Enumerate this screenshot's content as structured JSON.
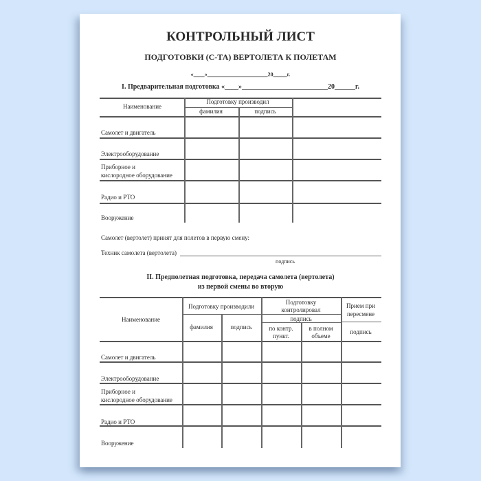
{
  "title": "КОНТРОЛЬНЫЙ ЛИСТ",
  "subtitle": "ПОДГОТОВКИ (С-ТА) ВЕРТОЛЕТА К ПОЛЕТАМ",
  "date_line": "«____»______________________20_____г.",
  "section1": {
    "title": "I. Предварительная подготовка   «____»_________________________20______г.",
    "headers": {
      "name": "Наименование",
      "performed": "Подготовку производил",
      "surname": "фамилия",
      "signature": "подпись"
    },
    "rows": [
      "Самолет и двигатель",
      "Электрооборудование",
      "Приборное и",
      "кислородное оборудование",
      "Радио и РТО",
      "Вооружение"
    ]
  },
  "accepted_text": "Самолет (вертолет) принят для полетов в первую смену:",
  "technician_label": "Техник самолета (вертолета)",
  "signature_caption": "подпись",
  "section2": {
    "title_line1": "II. Предполетная подготовка, передача самолета (вертолета)",
    "title_line2": "из первой смены во вторую",
    "headers": {
      "name": "Наименование",
      "performed": "Подготовку производили",
      "controlled_1": "Подготовку",
      "controlled_2": "контролировал",
      "signature": "подпись",
      "surname": "фамилия",
      "by_points_1": "по контр.",
      "by_points_2": "пункт.",
      "full_1": "в полном",
      "full_2": "объеме",
      "accept_1": "Прием при",
      "accept_2": "пересмене"
    },
    "rows": [
      "Самолет и двигатель",
      "Электрооборудование",
      "Приборное и",
      "кислородное оборудование",
      "Радио и РТО",
      "Вооружение"
    ]
  }
}
